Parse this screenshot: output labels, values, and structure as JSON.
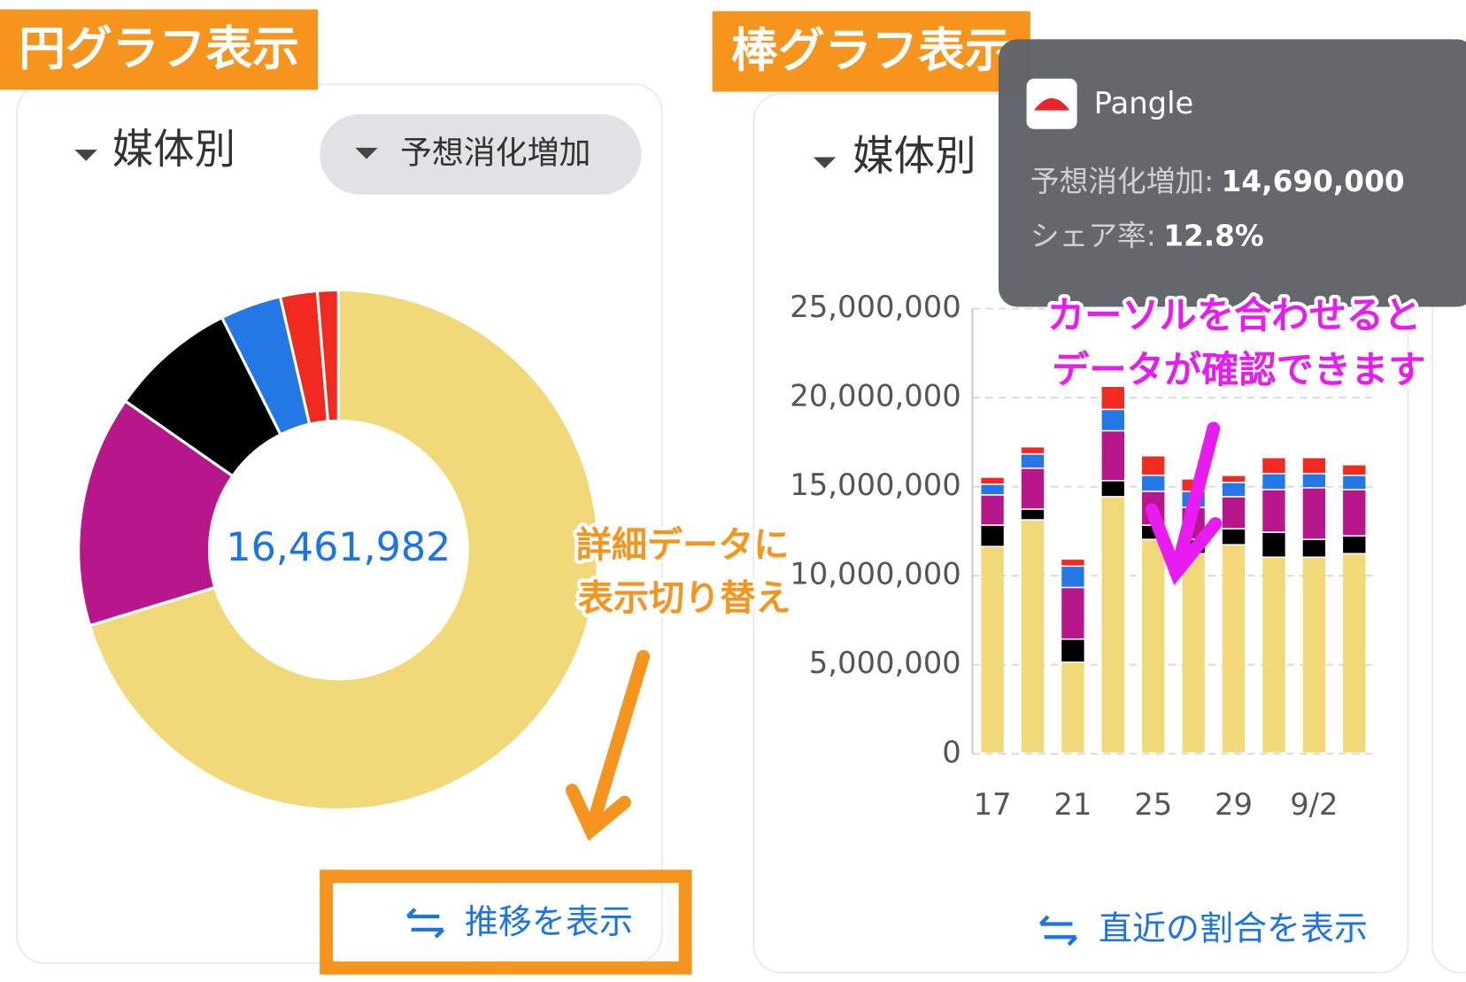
{
  "badges": {
    "pie": "円グラフ表示",
    "bar": "棒グラフ表示"
  },
  "left_panel": {
    "group_select": "媒体別",
    "metric_select": "予想消化増加",
    "center_total": "16,461,982",
    "toggle_button": "推移を表示"
  },
  "right_panel": {
    "group_select": "媒体別",
    "toggle_button": "直近の割合を表示"
  },
  "tooltip": {
    "name": "Pangle",
    "rows": [
      {
        "label": "予想消化増加:",
        "value": "14,690,000"
      },
      {
        "label": "シェア率:",
        "value": "12.8%"
      }
    ]
  },
  "annotations": {
    "switch_note": [
      "詳細データに",
      "表示切り替え"
    ],
    "hover_note": [
      "カーソルを合わせると",
      "データが確認できます"
    ]
  },
  "chart_data": [
    {
      "type": "pie",
      "values": [
        70.3,
        14.4,
        7.9,
        3.8,
        2.3,
        1.3
      ],
      "colors": [
        "#f1d97a",
        "#b8168b",
        "#000000",
        "#2378e6",
        "#f02a1e",
        "#f02a1e"
      ]
    },
    {
      "type": "bar",
      "stacked": true,
      "grid": true,
      "categories": [
        "17",
        null,
        "21",
        null,
        "25",
        null,
        "29",
        null,
        "9/2",
        null
      ],
      "ylim": [
        0,
        25000000
      ],
      "yticks": [
        0,
        {
          "value": 5000000,
          "label": "5,000,000"
        },
        {
          "value": 10000000,
          "label": "10,000,000"
        },
        {
          "value": 15000000,
          "label": "15,000,000"
        },
        {
          "value": 20000000,
          "label": "20,000,000"
        },
        {
          "value": 25000000,
          "label": "25,000,000"
        }
      ],
      "series": [
        {
          "color": "#f1d97a",
          "values": [
            11600000,
            13100000,
            5100000,
            14400000,
            12000000,
            11200000,
            11700000,
            11000000,
            11000000,
            11200000
          ]
        },
        {
          "color": "#000000",
          "values": [
            1200000,
            600000,
            1300000,
            900000,
            800000,
            800000,
            900000,
            1400000,
            1000000,
            1000000
          ]
        },
        {
          "color": "#b8168b",
          "values": [
            1700000,
            2300000,
            2900000,
            2800000,
            1900000,
            1800000,
            1800000,
            2400000,
            2900000,
            2600000
          ]
        },
        {
          "color": "#2378e6",
          "values": [
            600000,
            800000,
            1200000,
            1200000,
            900000,
            900000,
            800000,
            900000,
            800000,
            800000
          ]
        },
        {
          "color": "#f02a1e",
          "values": [
            400000,
            400000,
            400000,
            1300000,
            1100000,
            700000,
            400000,
            900000,
            900000,
            600000
          ]
        }
      ]
    }
  ]
}
